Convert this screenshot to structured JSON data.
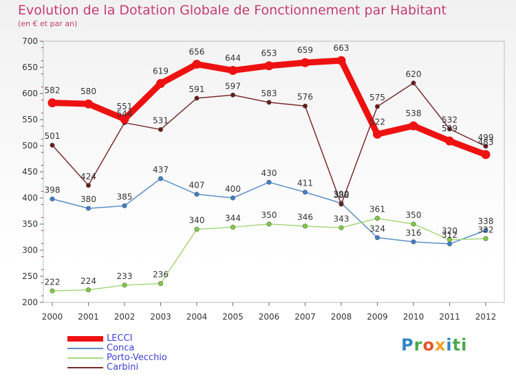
{
  "header": {
    "title": "Evolution de la Dotation Globale de Fonctionnement par Habitant",
    "subtitle": "(en € et par an)"
  },
  "logo": {
    "text": "Proxiti",
    "letters": [
      "P",
      "r",
      "o",
      "x",
      "i",
      "ti"
    ]
  },
  "chart_data": {
    "type": "line",
    "title": "Evolution de la Dotation Globale de Fonctionnement par Habitant",
    "subtitle": "(en € et par an)",
    "xlabel": "",
    "ylabel": "",
    "ylim": [
      200,
      700
    ],
    "yticks": [
      200,
      250,
      300,
      350,
      400,
      450,
      500,
      550,
      600,
      650,
      700
    ],
    "grid": false,
    "legend": "bottom-left",
    "x": [
      "2000",
      "2001",
      "2002",
      "2003",
      "2004",
      "2005",
      "2006",
      "2007",
      "2008",
      "2009",
      "2010",
      "2011",
      "2012"
    ],
    "series": [
      {
        "name": "LECCI",
        "color": "#ee1111",
        "marker": "#ee1111",
        "emphasis": true,
        "values": [
          582,
          580,
          551,
          619,
          656,
          644,
          653,
          659,
          663,
          522,
          538,
          509,
          483
        ],
        "labels": [
          "582",
          "580",
          "551",
          "619",
          "656",
          "644",
          "653",
          "659",
          "663",
          "522",
          "538",
          "509",
          "483"
        ]
      },
      {
        "name": "Conca",
        "color": "#5b8fc7",
        "marker": "#3c7fd0",
        "emphasis": false,
        "values": [
          398,
          380,
          385,
          437,
          407,
          400,
          430,
          411,
          390,
          324,
          316,
          312,
          338
        ],
        "labels": [
          "398",
          "380",
          "385",
          "437",
          "407",
          "400",
          "430",
          "411",
          "390",
          "324",
          "316",
          "312",
          "338"
        ]
      },
      {
        "name": "Porto-Vecchio",
        "color": "#a6d87c",
        "marker": "#7ed03a",
        "emphasis": false,
        "values": [
          222,
          224,
          233,
          236,
          340,
          344,
          350,
          346,
          343,
          361,
          350,
          320,
          322
        ],
        "labels": [
          "222",
          "224",
          "233",
          "236",
          "340",
          "344",
          "350",
          "346",
          "343",
          "361",
          "350",
          "320",
          "322"
        ]
      },
      {
        "name": "Carbini",
        "color": "#7a2a2a",
        "marker": "#6a1a1a",
        "emphasis": false,
        "values": [
          501,
          424,
          544,
          531,
          591,
          597,
          583,
          576,
          388,
          575,
          620,
          532,
          499
        ],
        "labels": [
          "501",
          "424",
          "544",
          "531",
          "591",
          "597",
          "583",
          "576",
          "388",
          "575",
          "620",
          "532",
          "499"
        ]
      }
    ]
  }
}
